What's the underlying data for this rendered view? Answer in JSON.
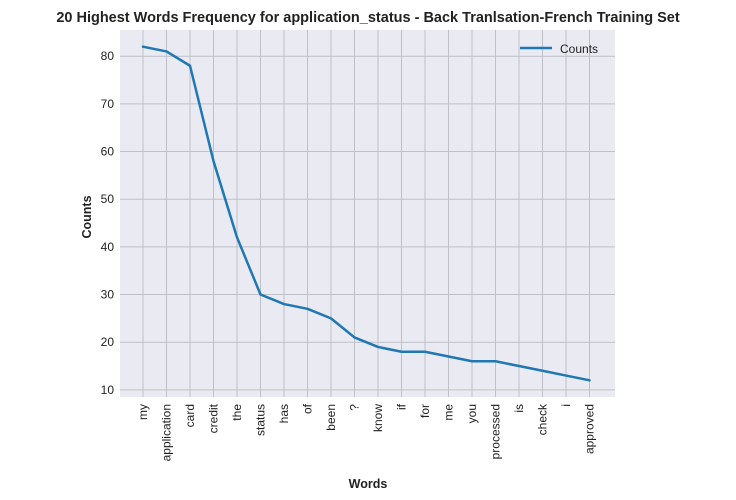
{
  "chart_data": {
    "type": "line",
    "title": "20 Highest Words Frequency for application_status - Back Tranlsation-French Training Set",
    "xlabel": "Words",
    "ylabel": "Counts",
    "categories": [
      "my",
      "application",
      "card",
      "credit",
      "the",
      "status",
      "has",
      "of",
      "been",
      "?",
      "know",
      "if",
      "for",
      "me",
      "you",
      "processed",
      "is",
      "check",
      "i",
      "approved"
    ],
    "series": [
      {
        "name": "Counts",
        "values": [
          82,
          81,
          78,
          58,
          42,
          30,
          28,
          27,
          25,
          21,
          19,
          18,
          18,
          17,
          16,
          16,
          15,
          14,
          13,
          12
        ],
        "color": "#1f77b4"
      }
    ],
    "ylim": [
      8.5,
      85.5
    ],
    "yticks": [
      10,
      20,
      30,
      40,
      50,
      60,
      70,
      80
    ],
    "grid": true,
    "legend_position": "top-right",
    "background_color": "#eaeaf2",
    "grid_color": "#c0c0c8"
  }
}
